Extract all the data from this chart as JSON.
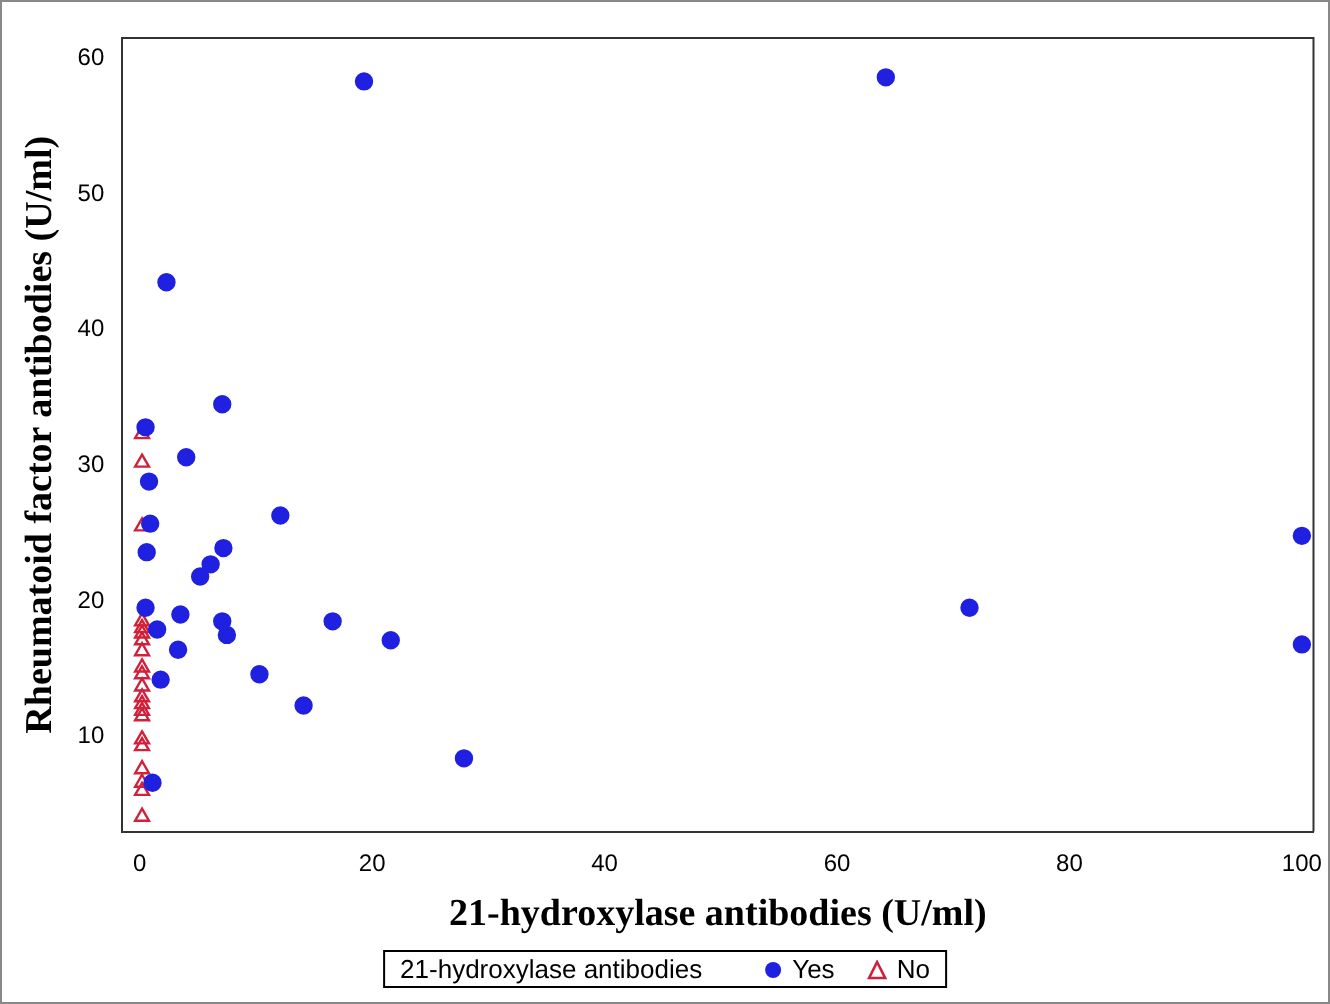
{
  "chart_data": {
    "type": "scatter",
    "xlabel": "21-hydroxylase antibodies (U/ml)",
    "ylabel": "Rheumatoid factor antibodies (U/ml)",
    "legend_title": "21-hydroxylase antibodies",
    "legend": "bottom",
    "grid": false,
    "xlim": [
      -1.5,
      101
    ],
    "ylim": [
      3,
      61.5
    ],
    "xticks": [
      0,
      20,
      40,
      60,
      80,
      100
    ],
    "yticks": [
      10,
      20,
      30,
      40,
      50,
      60
    ],
    "series": [
      {
        "name": "Yes",
        "color": "#2020e0",
        "marker": "circle",
        "x": [
          19.3,
          64.2,
          71.4,
          100,
          100,
          21.6,
          27.9,
          16.6,
          2.3,
          7.1,
          12.1,
          7.2,
          6.1,
          7.1,
          7.5,
          10.3,
          14.1,
          0.5,
          4.0,
          0.8,
          0.9,
          0.6,
          5.2,
          0.5,
          3.5,
          1.5,
          3.3,
          1.8,
          1.1
        ],
        "values": [
          58.3,
          58.6,
          19.5,
          24.8,
          16.8,
          17.1,
          8.4,
          18.5,
          43.5,
          34.5,
          26.3,
          23.9,
          22.7,
          18.5,
          17.5,
          14.6,
          12.3,
          32.8,
          30.6,
          28.8,
          25.7,
          23.6,
          21.8,
          19.5,
          19.0,
          17.9,
          16.4,
          14.2,
          6.6
        ]
      },
      {
        "name": "No",
        "color": "#d0203a",
        "marker": "triangle",
        "x": [
          0.2,
          0.2,
          0.2,
          0.2,
          0.2,
          0.2,
          0.2,
          0.2,
          0.2,
          0.2,
          0.2,
          0.2,
          0.2,
          0.2,
          0.2,
          0.2,
          0.2,
          0.2,
          0.2,
          0.2,
          0.2
        ],
        "values": [
          32.3,
          30.2,
          25.5,
          18.5,
          18.0,
          17.6,
          17.1,
          16.3,
          15.1,
          14.6,
          13.7,
          12.9,
          12.4,
          11.9,
          11.5,
          9.8,
          9.3,
          7.6,
          6.6,
          6.0,
          4.1
        ]
      }
    ]
  }
}
